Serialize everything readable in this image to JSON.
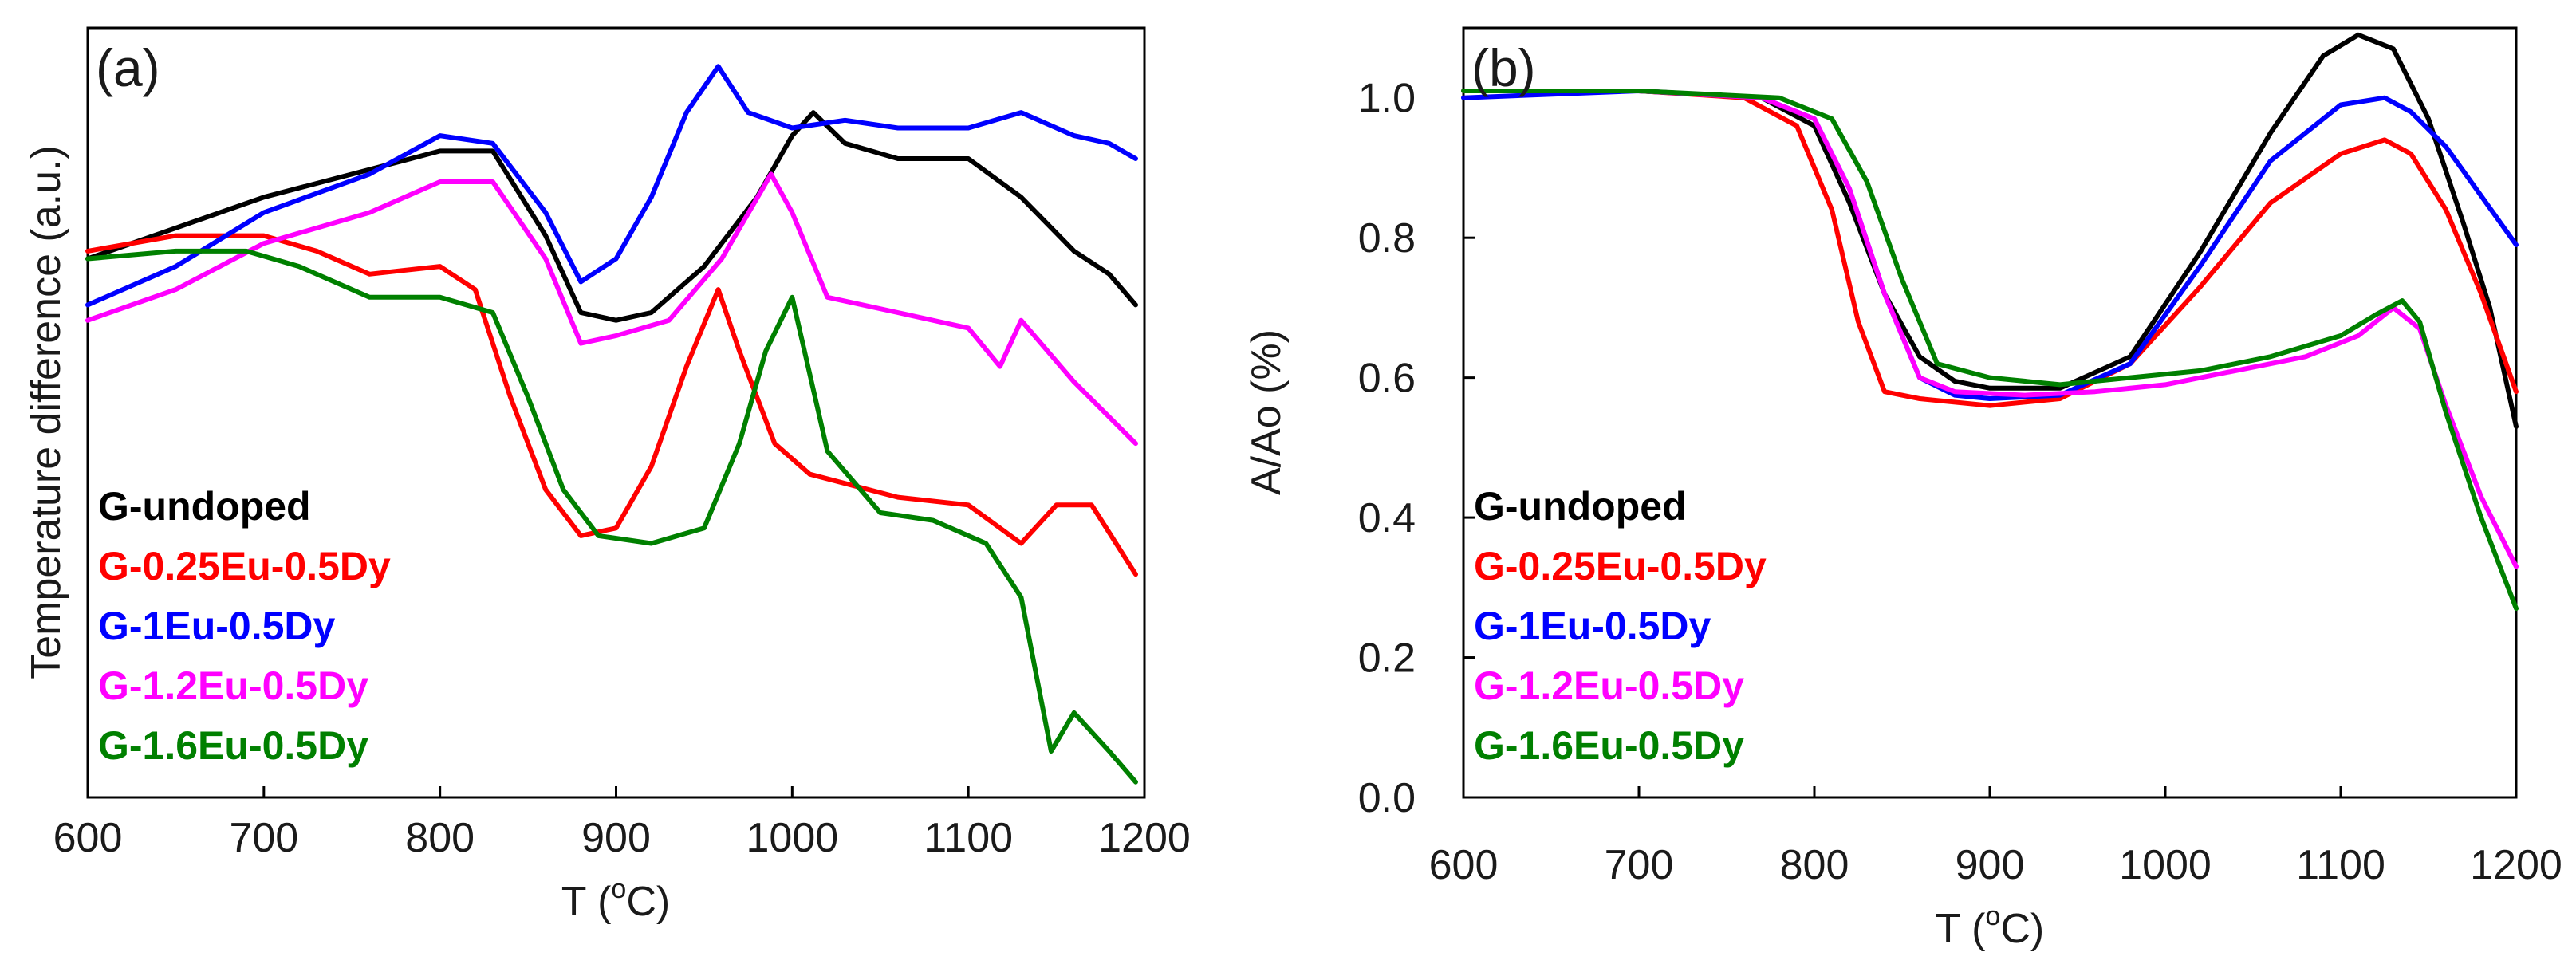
{
  "chart_data": [
    {
      "type": "line",
      "panel_label": "(a)",
      "xlabel": "T (",
      "xlabel_sup": "o",
      "xlabel_end": "C)",
      "ylabel": "Temperature difference (a.u.)",
      "xlim": [
        600,
        1200
      ],
      "ylim": [
        0,
        10
      ],
      "xticks": [
        600,
        700,
        800,
        900,
        1000,
        1100,
        1200
      ],
      "yticks": [],
      "legend_position": "bottom-left",
      "series": [
        {
          "name": "G-undoped",
          "color": "#000000",
          "x": [
            600,
            650,
            700,
            750,
            800,
            830,
            860,
            880,
            900,
            920,
            950,
            980,
            1000,
            1012,
            1030,
            1060,
            1100,
            1130,
            1160,
            1180,
            1195
          ],
          "y": [
            7.0,
            7.4,
            7.8,
            8.1,
            8.4,
            8.4,
            7.3,
            6.3,
            6.2,
            6.3,
            6.9,
            7.8,
            8.6,
            8.9,
            8.5,
            8.3,
            8.3,
            7.8,
            7.1,
            6.8,
            6.4
          ]
        },
        {
          "name": "G-0.25Eu-0.5Dy",
          "color": "#ff0000",
          "x": [
            600,
            650,
            700,
            730,
            760,
            800,
            820,
            840,
            860,
            880,
            900,
            920,
            940,
            958,
            970,
            990,
            1010,
            1060,
            1100,
            1130,
            1150,
            1170,
            1195
          ],
          "y": [
            7.1,
            7.3,
            7.3,
            7.1,
            6.8,
            6.9,
            6.6,
            5.2,
            4.0,
            3.4,
            3.5,
            4.3,
            5.6,
            6.6,
            5.8,
            4.6,
            4.2,
            3.9,
            3.8,
            3.3,
            3.8,
            3.8,
            2.9
          ]
        },
        {
          "name": "G-1Eu-0.5Dy",
          "color": "#0000ff",
          "x": [
            600,
            650,
            700,
            760,
            800,
            830,
            860,
            880,
            900,
            920,
            940,
            958,
            975,
            1000,
            1030,
            1060,
            1100,
            1130,
            1160,
            1180,
            1195
          ],
          "y": [
            6.4,
            6.9,
            7.6,
            8.1,
            8.6,
            8.5,
            7.6,
            6.7,
            7.0,
            7.8,
            8.9,
            9.5,
            8.9,
            8.7,
            8.8,
            8.7,
            8.7,
            8.9,
            8.6,
            8.5,
            8.3
          ]
        },
        {
          "name": "G-1.2Eu-0.5Dy",
          "color": "#ff00ff",
          "x": [
            600,
            650,
            700,
            760,
            800,
            830,
            860,
            880,
            900,
            930,
            960,
            988,
            1000,
            1020,
            1060,
            1100,
            1118,
            1130,
            1160,
            1195
          ],
          "y": [
            6.2,
            6.6,
            7.2,
            7.6,
            8.0,
            8.0,
            7.0,
            5.9,
            6.0,
            6.2,
            7.0,
            8.1,
            7.6,
            6.5,
            6.3,
            6.1,
            5.6,
            6.2,
            5.4,
            4.6
          ]
        },
        {
          "name": "G-1.6Eu-0.5Dy",
          "color": "#008000",
          "x": [
            600,
            650,
            690,
            720,
            760,
            800,
            830,
            850,
            870,
            890,
            920,
            950,
            970,
            985,
            1000,
            1020,
            1050,
            1080,
            1110,
            1130,
            1147,
            1160,
            1180,
            1195
          ],
          "y": [
            7.0,
            7.1,
            7.1,
            6.9,
            6.5,
            6.5,
            6.3,
            5.2,
            4.0,
            3.4,
            3.3,
            3.5,
            4.6,
            5.8,
            6.5,
            4.5,
            3.7,
            3.6,
            3.3,
            2.6,
            0.6,
            1.1,
            0.6,
            0.2
          ]
        }
      ]
    },
    {
      "type": "line",
      "panel_label": "(b)",
      "xlabel": "T (",
      "xlabel_sup": "o",
      "xlabel_end": "C)",
      "ylabel": "A/Ao (%)",
      "xlim": [
        600,
        1200
      ],
      "ylim": [
        0.0,
        1.1
      ],
      "xticks": [
        600,
        700,
        800,
        900,
        1000,
        1100,
        1200
      ],
      "yticks": [
        "0.0",
        "0.2",
        "0.4",
        "0.6",
        "0.8",
        "1.0"
      ],
      "legend_position": "bottom-left",
      "series": [
        {
          "name": "G-undoped",
          "color": "#000000",
          "x": [
            600,
            700,
            770,
            800,
            820,
            840,
            860,
            880,
            900,
            940,
            980,
            1020,
            1060,
            1090,
            1110,
            1130,
            1150,
            1170,
            1185,
            1200
          ],
          "y": [
            1.01,
            1.01,
            1.0,
            0.96,
            0.85,
            0.72,
            0.63,
            0.595,
            0.585,
            0.585,
            0.63,
            0.78,
            0.95,
            1.06,
            1.09,
            1.07,
            0.97,
            0.82,
            0.7,
            0.53
          ]
        },
        {
          "name": "G-0.25Eu-0.5Dy",
          "color": "#ff0000",
          "x": [
            600,
            700,
            760,
            790,
            810,
            825,
            840,
            860,
            900,
            940,
            980,
            1020,
            1060,
            1100,
            1125,
            1140,
            1160,
            1180,
            1200
          ],
          "y": [
            1.01,
            1.01,
            1.0,
            0.96,
            0.84,
            0.68,
            0.58,
            0.57,
            0.56,
            0.57,
            0.62,
            0.73,
            0.85,
            0.92,
            0.94,
            0.92,
            0.84,
            0.72,
            0.58
          ]
        },
        {
          "name": "G-1Eu-0.5Dy",
          "color": "#0000ff",
          "x": [
            600,
            700,
            770,
            800,
            820,
            840,
            860,
            880,
            900,
            940,
            980,
            1020,
            1060,
            1100,
            1125,
            1140,
            1160,
            1180,
            1200
          ],
          "y": [
            1.0,
            1.01,
            1.0,
            0.97,
            0.87,
            0.72,
            0.6,
            0.575,
            0.57,
            0.575,
            0.62,
            0.76,
            0.91,
            0.99,
            1.0,
            0.98,
            0.93,
            0.86,
            0.79
          ]
        },
        {
          "name": "G-1.2Eu-0.5Dy",
          "color": "#ff00ff",
          "x": [
            600,
            700,
            770,
            800,
            820,
            840,
            860,
            880,
            920,
            960,
            1000,
            1040,
            1080,
            1110,
            1130,
            1145,
            1160,
            1180,
            1200
          ],
          "y": [
            1.01,
            1.01,
            1.0,
            0.97,
            0.87,
            0.72,
            0.6,
            0.58,
            0.575,
            0.58,
            0.59,
            0.61,
            0.63,
            0.66,
            0.7,
            0.67,
            0.56,
            0.43,
            0.33
          ]
        },
        {
          "name": "G-1.6Eu-0.5Dy",
          "color": "#008000",
          "x": [
            600,
            700,
            780,
            810,
            830,
            850,
            870,
            900,
            940,
            980,
            1020,
            1060,
            1100,
            1120,
            1135,
            1145,
            1160,
            1180,
            1200
          ],
          "y": [
            1.01,
            1.01,
            1.0,
            0.97,
            0.88,
            0.74,
            0.62,
            0.6,
            0.59,
            0.6,
            0.61,
            0.63,
            0.66,
            0.69,
            0.71,
            0.68,
            0.55,
            0.4,
            0.27
          ]
        }
      ]
    }
  ]
}
